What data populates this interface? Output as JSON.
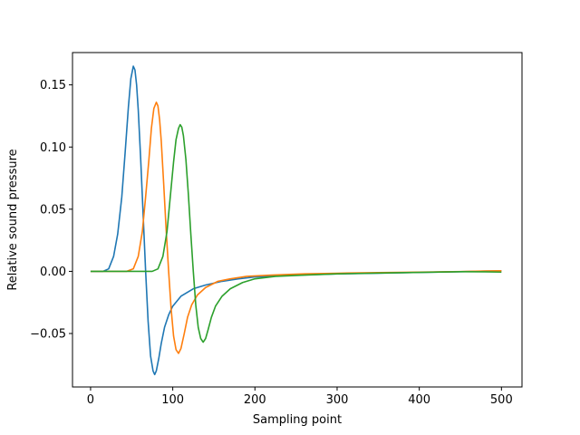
{
  "chart_data": {
    "type": "line",
    "title": "",
    "xlabel": "Sampling point",
    "ylabel": "Relative sound pressure",
    "xlim": [
      -22,
      525
    ],
    "ylim": [
      -0.093,
      0.176
    ],
    "xticks": [
      0,
      100,
      200,
      300,
      400,
      500
    ],
    "xtick_labels": [
      "0",
      "100",
      "200",
      "300",
      "400",
      "500"
    ],
    "yticks": [
      -0.05,
      0.0,
      0.05,
      0.1,
      0.15
    ],
    "ytick_labels": [
      "−0.05",
      "0.00",
      "0.05",
      "0.10",
      "0.15"
    ],
    "grid": false,
    "series": [
      {
        "color": "#1f77b4",
        "points": [
          [
            0,
            0
          ],
          [
            15,
            0
          ],
          [
            22,
            0.002
          ],
          [
            28,
            0.012
          ],
          [
            33,
            0.03
          ],
          [
            38,
            0.06
          ],
          [
            42,
            0.095
          ],
          [
            46,
            0.132
          ],
          [
            49,
            0.155
          ],
          [
            52,
            0.165
          ],
          [
            54,
            0.162
          ],
          [
            56,
            0.15
          ],
          [
            58,
            0.13
          ],
          [
            61,
            0.09
          ],
          [
            64,
            0.045
          ],
          [
            67,
            0
          ],
          [
            70,
            -0.04
          ],
          [
            73,
            -0.068
          ],
          [
            76,
            -0.08
          ],
          [
            78,
            -0.083
          ],
          [
            80,
            -0.08
          ],
          [
            83,
            -0.07
          ],
          [
            86,
            -0.058
          ],
          [
            90,
            -0.045
          ],
          [
            95,
            -0.035
          ],
          [
            100,
            -0.028
          ],
          [
            110,
            -0.02
          ],
          [
            125,
            -0.014
          ],
          [
            140,
            -0.011
          ],
          [
            160,
            -0.008
          ],
          [
            180,
            -0.006
          ],
          [
            200,
            -0.0045
          ],
          [
            250,
            -0.003
          ],
          [
            300,
            -0.002
          ],
          [
            350,
            -0.0015
          ],
          [
            400,
            -0.0008
          ],
          [
            450,
            -0.0003
          ],
          [
            480,
            0.0002
          ],
          [
            500,
            0.0004
          ]
        ]
      },
      {
        "color": "#ff7f0e",
        "points": [
          [
            0,
            0
          ],
          [
            44,
            0
          ],
          [
            52,
            0.002
          ],
          [
            58,
            0.012
          ],
          [
            63,
            0.032
          ],
          [
            67,
            0.06
          ],
          [
            71,
            0.09
          ],
          [
            74,
            0.115
          ],
          [
            77,
            0.131
          ],
          [
            80,
            0.136
          ],
          [
            82,
            0.133
          ],
          [
            84,
            0.122
          ],
          [
            86,
            0.105
          ],
          [
            89,
            0.07
          ],
          [
            92,
            0.033
          ],
          [
            95,
            0
          ],
          [
            98,
            -0.03
          ],
          [
            101,
            -0.052
          ],
          [
            104,
            -0.063
          ],
          [
            107,
            -0.066
          ],
          [
            110,
            -0.062
          ],
          [
            114,
            -0.05
          ],
          [
            118,
            -0.037
          ],
          [
            123,
            -0.027
          ],
          [
            130,
            -0.019
          ],
          [
            140,
            -0.013
          ],
          [
            155,
            -0.008
          ],
          [
            170,
            -0.006
          ],
          [
            190,
            -0.004
          ],
          [
            220,
            -0.003
          ],
          [
            260,
            -0.002
          ],
          [
            300,
            -0.0015
          ],
          [
            350,
            -0.001
          ],
          [
            400,
            -0.0006
          ],
          [
            450,
            -0.0002
          ],
          [
            480,
            0.0003
          ],
          [
            500,
            0.0005
          ]
        ]
      },
      {
        "color": "#2ca02c",
        "points": [
          [
            0,
            0
          ],
          [
            75,
            0
          ],
          [
            82,
            0.002
          ],
          [
            88,
            0.012
          ],
          [
            93,
            0.032
          ],
          [
            97,
            0.06
          ],
          [
            101,
            0.088
          ],
          [
            104,
            0.106
          ],
          [
            107,
            0.115
          ],
          [
            109,
            0.118
          ],
          [
            111,
            0.116
          ],
          [
            113,
            0.109
          ],
          [
            116,
            0.09
          ],
          [
            119,
            0.062
          ],
          [
            122,
            0.03
          ],
          [
            125,
            0
          ],
          [
            128,
            -0.027
          ],
          [
            131,
            -0.045
          ],
          [
            134,
            -0.054
          ],
          [
            137,
            -0.057
          ],
          [
            140,
            -0.054
          ],
          [
            143,
            -0.047
          ],
          [
            147,
            -0.037
          ],
          [
            152,
            -0.028
          ],
          [
            160,
            -0.02
          ],
          [
            170,
            -0.014
          ],
          [
            185,
            -0.009
          ],
          [
            200,
            -0.006
          ],
          [
            225,
            -0.004
          ],
          [
            260,
            -0.003
          ],
          [
            300,
            -0.002
          ],
          [
            350,
            -0.0014
          ],
          [
            400,
            -0.0008
          ],
          [
            450,
            -0.0003
          ],
          [
            480,
            -0.0004
          ],
          [
            500,
            -0.0006
          ]
        ]
      }
    ]
  }
}
